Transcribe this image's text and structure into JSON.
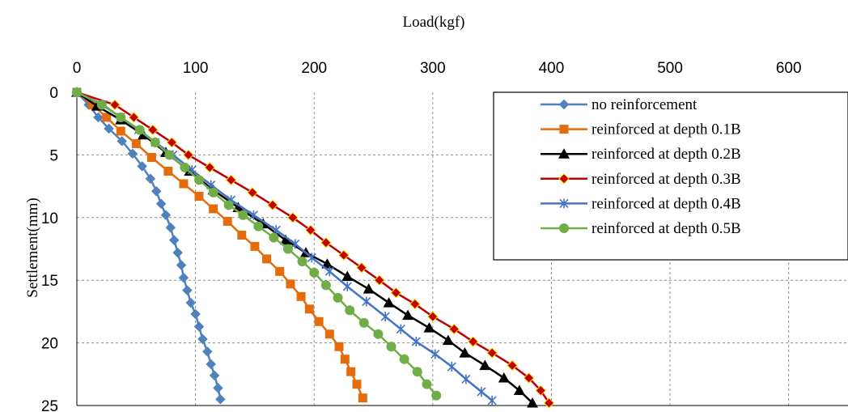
{
  "chart_data": {
    "type": "line",
    "title": "",
    "xlabel": "Load(kgf)",
    "ylabel": "Settlement(mm)",
    "xlim": [
      0,
      650
    ],
    "ylim": [
      0,
      25
    ],
    "x_ticks": [
      0,
      100,
      200,
      300,
      400,
      500,
      600
    ],
    "y_ticks": [
      0,
      5,
      10,
      15,
      20,
      25
    ],
    "x_axis_position": "top",
    "y_axis_inverted": true,
    "grid": true,
    "legend_position": "top-right",
    "series": [
      {
        "name": "no reinforcement",
        "color": "#4F81BD",
        "marker": "diamond",
        "points": [
          [
            0,
            0
          ],
          [
            10,
            1
          ],
          [
            18,
            2
          ],
          [
            27,
            2.9
          ],
          [
            38,
            3.9
          ],
          [
            47,
            4.9
          ],
          [
            55,
            5.9
          ],
          [
            62,
            6.9
          ],
          [
            67,
            7.9
          ],
          [
            71,
            8.9
          ],
          [
            75,
            9.8
          ],
          [
            79,
            10.8
          ],
          [
            82,
            11.8
          ],
          [
            85,
            12.8
          ],
          [
            88,
            13.8
          ],
          [
            90,
            14.8
          ],
          [
            93,
            15.8
          ],
          [
            96,
            16.8
          ],
          [
            100,
            17.7
          ],
          [
            103,
            18.7
          ],
          [
            106,
            19.7
          ],
          [
            110,
            20.7
          ],
          [
            113,
            21.7
          ],
          [
            116,
            22.6
          ],
          [
            119,
            23.6
          ],
          [
            121,
            24.5
          ]
        ]
      },
      {
        "name": "reinforced at depth 0.1B",
        "color": "#E46C0A",
        "marker": "square",
        "points": [
          [
            0,
            0
          ],
          [
            13,
            1
          ],
          [
            25,
            2
          ],
          [
            37,
            3.1
          ],
          [
            50,
            4.1
          ],
          [
            63,
            5.2
          ],
          [
            77,
            6.3
          ],
          [
            90,
            7.3
          ],
          [
            103,
            8.3
          ],
          [
            115,
            9.3
          ],
          [
            127,
            10.3
          ],
          [
            139,
            11.4
          ],
          [
            150,
            12.3
          ],
          [
            160,
            13.3
          ],
          [
            171,
            14.3
          ],
          [
            180,
            15.3
          ],
          [
            189,
            16.3
          ],
          [
            196,
            17.3
          ],
          [
            204,
            18.3
          ],
          [
            213,
            19.3
          ],
          [
            221,
            20.3
          ],
          [
            226,
            21.3
          ],
          [
            231,
            22.3
          ],
          [
            236,
            23.3
          ],
          [
            241,
            24.4
          ]
        ]
      },
      {
        "name": "reinforced at depth 0.2B",
        "color": "#000000",
        "marker": "triangle",
        "points": [
          [
            0,
            0
          ],
          [
            17,
            1.1
          ],
          [
            37,
            2.2
          ],
          [
            56,
            3.4
          ],
          [
            75,
            4.8
          ],
          [
            95,
            6.3
          ],
          [
            115,
            7.8
          ],
          [
            136,
            9.2
          ],
          [
            157,
            10.5
          ],
          [
            176,
            11.8
          ],
          [
            193,
            12.8
          ],
          [
            211,
            13.7
          ],
          [
            228,
            14.7
          ],
          [
            246,
            15.7
          ],
          [
            263,
            16.8
          ],
          [
            279,
            17.8
          ],
          [
            297,
            18.8
          ],
          [
            313,
            19.8
          ],
          [
            327,
            20.8
          ],
          [
            344,
            21.8
          ],
          [
            360,
            22.8
          ],
          [
            373,
            23.8
          ],
          [
            384,
            24.8
          ]
        ]
      },
      {
        "name": "reinforced at depth 0.3B",
        "color": "#C00000",
        "marker": "diamond",
        "points": [
          [
            0,
            0
          ],
          [
            32,
            1
          ],
          [
            48,
            2
          ],
          [
            64,
            3
          ],
          [
            80,
            4
          ],
          [
            94,
            5
          ],
          [
            112,
            6
          ],
          [
            130,
            7
          ],
          [
            148,
            8
          ],
          [
            165,
            9
          ],
          [
            182,
            10
          ],
          [
            197,
            11
          ],
          [
            210,
            12
          ],
          [
            225,
            13
          ],
          [
            240,
            14
          ],
          [
            255,
            15
          ],
          [
            269,
            16
          ],
          [
            285,
            16.9
          ],
          [
            300,
            17.9
          ],
          [
            318,
            18.9
          ],
          [
            334,
            19.9
          ],
          [
            350,
            20.8
          ],
          [
            367,
            21.8
          ],
          [
            381,
            22.8
          ],
          [
            391,
            23.8
          ],
          [
            398,
            24.8
          ]
        ]
      },
      {
        "name": "reinforced at depth 0.4B",
        "color": "#4472C4",
        "marker": "star",
        "points": [
          [
            0,
            0
          ],
          [
            22,
            1
          ],
          [
            37,
            2
          ],
          [
            52,
            3
          ],
          [
            66,
            4
          ],
          [
            81,
            5
          ],
          [
            97,
            6.2
          ],
          [
            113,
            7.4
          ],
          [
            130,
            8.6
          ],
          [
            149,
            9.8
          ],
          [
            168,
            11
          ],
          [
            184,
            12.1
          ],
          [
            198,
            13.2
          ],
          [
            213,
            14.3
          ],
          [
            228,
            15.5
          ],
          [
            244,
            16.7
          ],
          [
            260,
            17.9
          ],
          [
            273,
            18.9
          ],
          [
            286,
            19.9
          ],
          [
            302,
            20.9
          ],
          [
            316,
            21.9
          ],
          [
            328,
            22.9
          ],
          [
            341,
            23.9
          ],
          [
            350,
            24.6
          ]
        ]
      },
      {
        "name": "reinforced at depth 0.5B",
        "color": "#70AD47",
        "marker": "circle",
        "points": [
          [
            0,
            0
          ],
          [
            21,
            1
          ],
          [
            37,
            2
          ],
          [
            53,
            3
          ],
          [
            66,
            4
          ],
          [
            78,
            5
          ],
          [
            91,
            6
          ],
          [
            103,
            7
          ],
          [
            115,
            8
          ],
          [
            128,
            9
          ],
          [
            140,
            9.8
          ],
          [
            153,
            10.7
          ],
          [
            166,
            11.6
          ],
          [
            178,
            12.5
          ],
          [
            190,
            13.5
          ],
          [
            200,
            14.4
          ],
          [
            210,
            15.4
          ],
          [
            220,
            16.4
          ],
          [
            230,
            17.4
          ],
          [
            242,
            18.4
          ],
          [
            254,
            19.3
          ],
          [
            265,
            20.3
          ],
          [
            276,
            21.3
          ],
          [
            287,
            22.3
          ],
          [
            295,
            23.3
          ],
          [
            303,
            24.2
          ]
        ]
      }
    ]
  }
}
